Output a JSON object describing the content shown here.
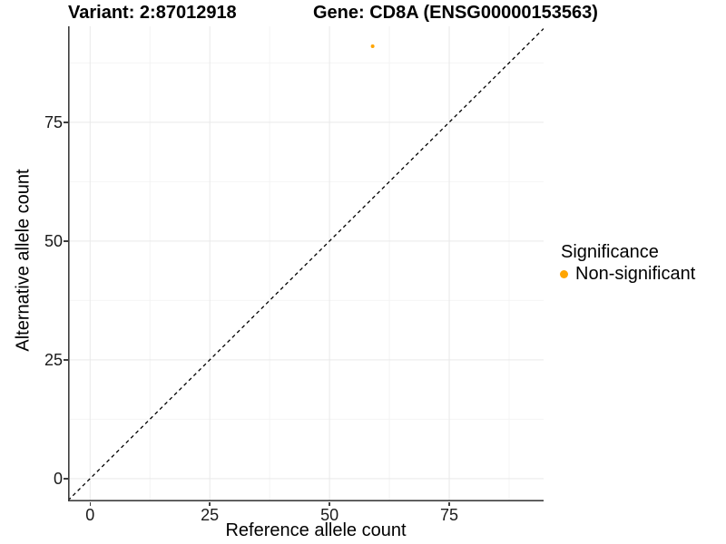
{
  "chart_data": {
    "type": "scatter",
    "titles": {
      "variant": "Variant: 2:87012918",
      "gene": "Gene: CD8A (ENSG00000153563)"
    },
    "xlabel": "Reference allele count",
    "ylabel": "Alternative allele count",
    "xlim": [
      -4.6,
      94.7
    ],
    "ylim": [
      -4.8,
      95.2
    ],
    "x_major_ticks": [
      0,
      25,
      50,
      75
    ],
    "y_major_ticks": [
      0,
      25,
      50,
      75
    ],
    "x_minor_ticks": [
      12.5,
      37.5,
      62.5,
      87.5
    ],
    "y_minor_ticks": [
      12.5,
      37.5,
      62.5,
      87.5
    ],
    "grid": "major and minor gridlines on white background",
    "reference_line": {
      "kind": "identity y = x",
      "style": "dashed",
      "color": "#000000"
    },
    "series": [
      {
        "name": "Non-significant",
        "color": "#FFA500",
        "points": [
          [
            59,
            91
          ]
        ]
      }
    ],
    "legend": {
      "title": "Significance",
      "position": "right",
      "items": [
        {
          "label": "Non-significant",
          "color": "#FFA500"
        }
      ]
    }
  },
  "colors": {
    "background": "#FFFFFF",
    "axis_line": "#3D3D3D",
    "grid_major": "#E9E9E9",
    "grid_minor": "#F4F4F4",
    "text": "#000000",
    "point": "#FFA500"
  }
}
